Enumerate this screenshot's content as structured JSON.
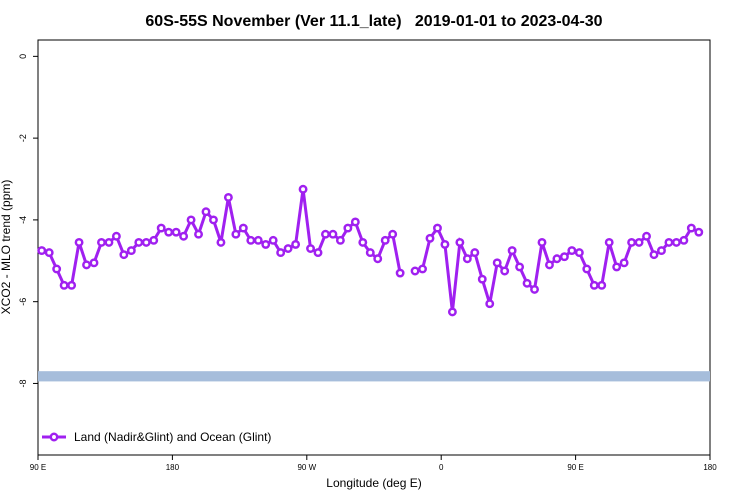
{
  "chart_data": {
    "type": "line",
    "title": "60S-55S November (Ver 11.1_late)   2019-01-01 to 2023-04-30",
    "x_label": "Longitude (deg E)",
    "y_label": "XCO2 - MLO trend (ppm)",
    "xlim": [
      90,
      540
    ],
    "ylim": [
      -9.75,
      0.4
    ],
    "xticks": [
      {
        "value": 90,
        "label": "90 E"
      },
      {
        "value": 180,
        "label": "180"
      },
      {
        "value": 270,
        "label": "90 W"
      },
      {
        "value": 360,
        "label": "0"
      },
      {
        "value": 450,
        "label": "90 E"
      },
      {
        "value": 540,
        "label": "180"
      }
    ],
    "yticks": [
      0,
      -2,
      -4,
      -6,
      -8
    ],
    "band": [
      -7.95,
      -7.7
    ],
    "band_color": "#a6bddb",
    "legend": "bottom-left",
    "x": [
      92.5,
      97.5,
      102.5,
      107.5,
      112.5,
      117.5,
      122.5,
      127.5,
      132.5,
      137.5,
      142.5,
      147.5,
      152.5,
      157.5,
      162.5,
      167.5,
      172.5,
      177.5,
      182.5,
      187.5,
      192.5,
      197.5,
      202.5,
      207.5,
      212.5,
      217.5,
      222.5,
      227.5,
      232.5,
      237.5,
      242.5,
      247.5,
      252.5,
      257.5,
      262.5,
      267.5,
      272.5,
      277.5,
      282.5,
      287.5,
      292.5,
      297.5,
      302.5,
      307.5,
      312.5,
      317.5,
      322.5,
      327.5,
      332.5,
      337.5,
      342.5,
      347.5,
      352.5,
      357.5,
      362.5,
      367.5,
      372.5,
      377.5,
      382.5,
      387.5,
      392.5,
      397.5,
      402.5,
      407.5,
      412.5,
      417.5,
      422.5,
      427.5,
      432.5,
      437.5,
      442.5,
      447.5,
      452.5,
      457.5,
      462.5,
      467.5,
      472.5,
      477.5,
      482.5,
      487.5,
      492.5,
      497.5,
      502.5,
      507.5,
      512.5,
      517.5,
      522.5,
      527.5,
      532.5
    ],
    "series": [
      {
        "name": "Land (Nadir&Glint) and Ocean (Glint)",
        "color": "#a020f0",
        "values": [
          -4.75,
          -4.8,
          -5.2,
          -5.6,
          -5.6,
          -4.55,
          -5.1,
          -5.05,
          -4.55,
          -4.55,
          -4.4,
          -4.85,
          -4.75,
          -4.55,
          -4.55,
          -4.5,
          -4.2,
          -4.3,
          -4.3,
          -4.4,
          -4.0,
          -4.35,
          -3.8,
          -4.0,
          -4.55,
          -3.45,
          -4.35,
          -4.2,
          -4.5,
          -4.5,
          -4.6,
          -4.5,
          -4.8,
          -4.7,
          -4.6,
          -3.25,
          -4.7,
          -4.8,
          -4.35,
          -4.35,
          -4.5,
          -4.2,
          -4.05,
          -4.55,
          -4.8,
          -4.95,
          -4.5,
          -4.35,
          -5.3,
          null,
          -5.25,
          -5.2,
          -4.45,
          -4.2,
          -4.6,
          -6.25,
          -4.55,
          -4.95,
          -4.8,
          -5.45,
          -6.05,
          -5.05,
          -5.25,
          -4.75,
          -5.15,
          -5.55,
          -5.7,
          -4.55,
          -5.1,
          -4.95,
          -4.9,
          -4.75,
          -4.8,
          -5.2,
          -5.6,
          -5.6,
          -4.55,
          -5.15,
          -5.05,
          -4.55,
          -4.55,
          -4.4,
          -4.85,
          -4.75,
          -4.55,
          -4.55,
          -4.5,
          -4.2,
          -4.3
        ]
      }
    ]
  }
}
